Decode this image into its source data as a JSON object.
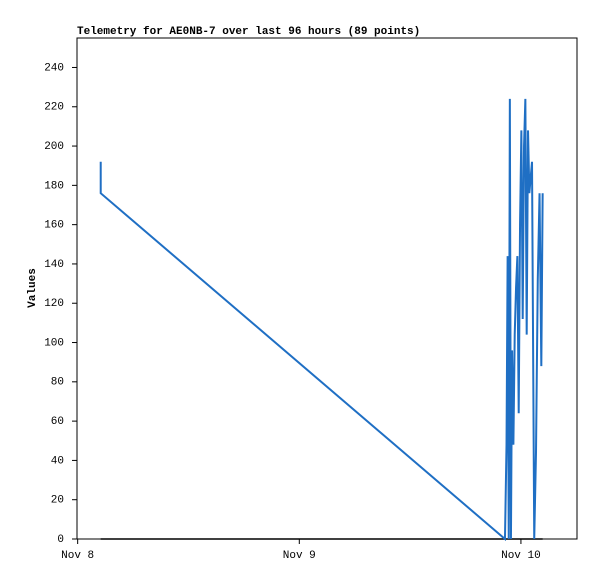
{
  "chart_data": {
    "type": "line",
    "title": "Telemetry for AE0NB-7 over last 96 hours (89 points)",
    "y_label": "Values",
    "xlim": [
      -0.003,
      2.253
    ],
    "xticks": [
      {
        "value": 0,
        "label": "Nov 8"
      },
      {
        "value": 1,
        "label": "Nov 9"
      },
      {
        "value": 2,
        "label": "Nov 10"
      }
    ],
    "ylim": [
      0,
      255
    ],
    "yticks": [
      0,
      20,
      40,
      60,
      80,
      100,
      120,
      140,
      160,
      180,
      200,
      220,
      240
    ],
    "series": [
      {
        "color": "#000000",
        "x": [
          0.104,
          2.098
        ],
        "values": [
          0,
          0
        ]
      },
      {
        "color": "#1f6fc4",
        "x": [
          0.104,
          0.104,
          1.928,
          1.935,
          1.94,
          1.945,
          1.95,
          1.955,
          1.96,
          1.966,
          1.972,
          1.978,
          1.984,
          1.99,
          1.996,
          2.002,
          2.008,
          2.014,
          2.02,
          2.026,
          2.032,
          2.038,
          2.044,
          2.05,
          2.06,
          2.068,
          2.076,
          2.084,
          2.092,
          2.098
        ],
        "values": [
          192,
          176,
          0,
          48,
          144,
          0,
          224,
          0,
          96,
          48,
          104,
          128,
          144,
          64,
          160,
          208,
          112,
          200,
          224,
          104,
          208,
          176,
          184,
          192,
          0,
          44,
          132,
          176,
          88,
          176
        ]
      }
    ]
  }
}
